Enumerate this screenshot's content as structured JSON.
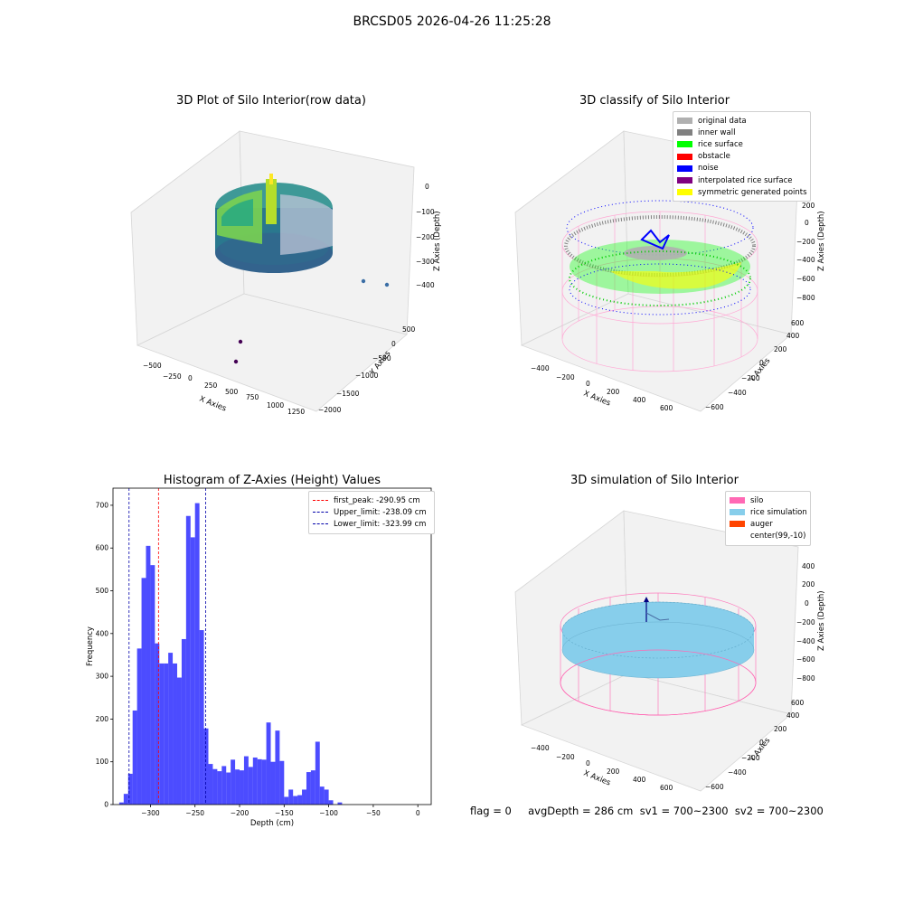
{
  "suptitle": "BRCSD05 2026-04-26 11:25:28",
  "status_line": "flag = 0     avgDepth = 286 cm  sv1 = 700~2300  sv2 = 700~2300",
  "colors": {
    "original_data": "#b0b0b0",
    "inner_wall": "#808080",
    "rice_surface": "#00ff00",
    "obstacle": "#ff0000",
    "noise": "#0000ff",
    "interpolated_rice_surface": "#800080",
    "symmetric_generated_points": "#ffff00",
    "silo": "#ff69b4",
    "rice_simulation": "#87ceeb",
    "auger": "#ff4500",
    "hist_bars": "#0000ff"
  },
  "chart_data": [
    {
      "type": "scatter",
      "title": "3D Plot of Silo Interior(row data)",
      "xlabel": "X Axies",
      "ylabel": "Y Axies",
      "zlabel": "Z Axies (Depth)",
      "x_ticks": [
        "−500",
        "−250",
        "0",
        "250",
        "500",
        "750",
        "1000",
        "1250"
      ],
      "y_ticks": [
        "−2000",
        "−1500",
        "−1000",
        "−500",
        "0",
        "500"
      ],
      "z_ticks": [
        "0",
        "−100",
        "−200",
        "−300",
        "−400"
      ],
      "colormap": "viridis",
      "outliers": [
        {
          "x": 1100,
          "y": -100,
          "z": -400
        },
        {
          "x": 1250,
          "y": -100,
          "z": -400
        },
        {
          "x": 500,
          "y": -1200,
          "z": -400
        },
        {
          "x": 500,
          "y": -1500,
          "z": -400
        }
      ]
    },
    {
      "type": "scatter",
      "title": "3D classify of Silo Interior",
      "x_ticks": [
        "−400",
        "−200",
        "0",
        "200",
        "400",
        "600"
      ],
      "y_ticks": [
        "−600",
        "−400",
        "−200",
        "0",
        "200",
        "400",
        "600"
      ],
      "z_ticks": [
        "200",
        "0",
        "−200",
        "−400",
        "−600",
        "−800"
      ],
      "xlabel": "X Axies",
      "ylabel": "Y Axies",
      "zlabel": "Z Axies (Depth)",
      "legend": [
        "original data",
        "inner wall",
        "rice surface",
        "obstacle",
        "noise",
        "interpolated rice surface",
        "symmetric generated points"
      ],
      "legend_position": "top-right"
    },
    {
      "type": "bar",
      "title": "Histogram of Z-Axies (Height) Values",
      "xlabel": "Depth (cm)",
      "ylabel": "Frequency",
      "xlim": [
        -342,
        15
      ],
      "ylim": [
        0,
        740
      ],
      "x_ticks": [
        -300,
        -250,
        -200,
        -150,
        -100,
        -50,
        0
      ],
      "y_ticks": [
        0,
        100,
        200,
        300,
        400,
        500,
        600,
        700
      ],
      "bin_start": -335,
      "bin_width": 5,
      "values": [
        5,
        25,
        72,
        220,
        365,
        530,
        605,
        560,
        377,
        330,
        330,
        355,
        330,
        297,
        387,
        675,
        625,
        705,
        408,
        178,
        95,
        83,
        78,
        90,
        75,
        105,
        82,
        80,
        113,
        88,
        110,
        106,
        105,
        192,
        100,
        173,
        102,
        18,
        35,
        20,
        22,
        35,
        76,
        80,
        147,
        42,
        35,
        10,
        0,
        5
      ],
      "reference_lines": [
        {
          "label": "first_peak: -290.95 cm",
          "x": -290.95,
          "color": "#ff0000"
        },
        {
          "label": "Upper_limit: -238.09 cm",
          "x": -238.09,
          "color": "#0000aa"
        },
        {
          "label": "Lower_limit: -323.99 cm",
          "x": -323.99,
          "color": "#0000aa"
        }
      ],
      "legend_position": "top-right"
    },
    {
      "type": "scatter",
      "title": "3D simulation of Silo Interior",
      "x_ticks": [
        "−400",
        "−200",
        "0",
        "200",
        "400",
        "600"
      ],
      "y_ticks": [
        "−600",
        "−400",
        "−200",
        "0",
        "200",
        "400",
        "600"
      ],
      "z_ticks": [
        "400",
        "200",
        "0",
        "−200",
        "−400",
        "−600",
        "−800"
      ],
      "xlabel": "X Axies",
      "ylabel": "Y Axies",
      "zlabel": "Z Axies (Depth)",
      "legend": [
        "silo",
        "rice simulation",
        "auger",
        "center(99,-10)"
      ],
      "legend_position": "top-right"
    }
  ]
}
